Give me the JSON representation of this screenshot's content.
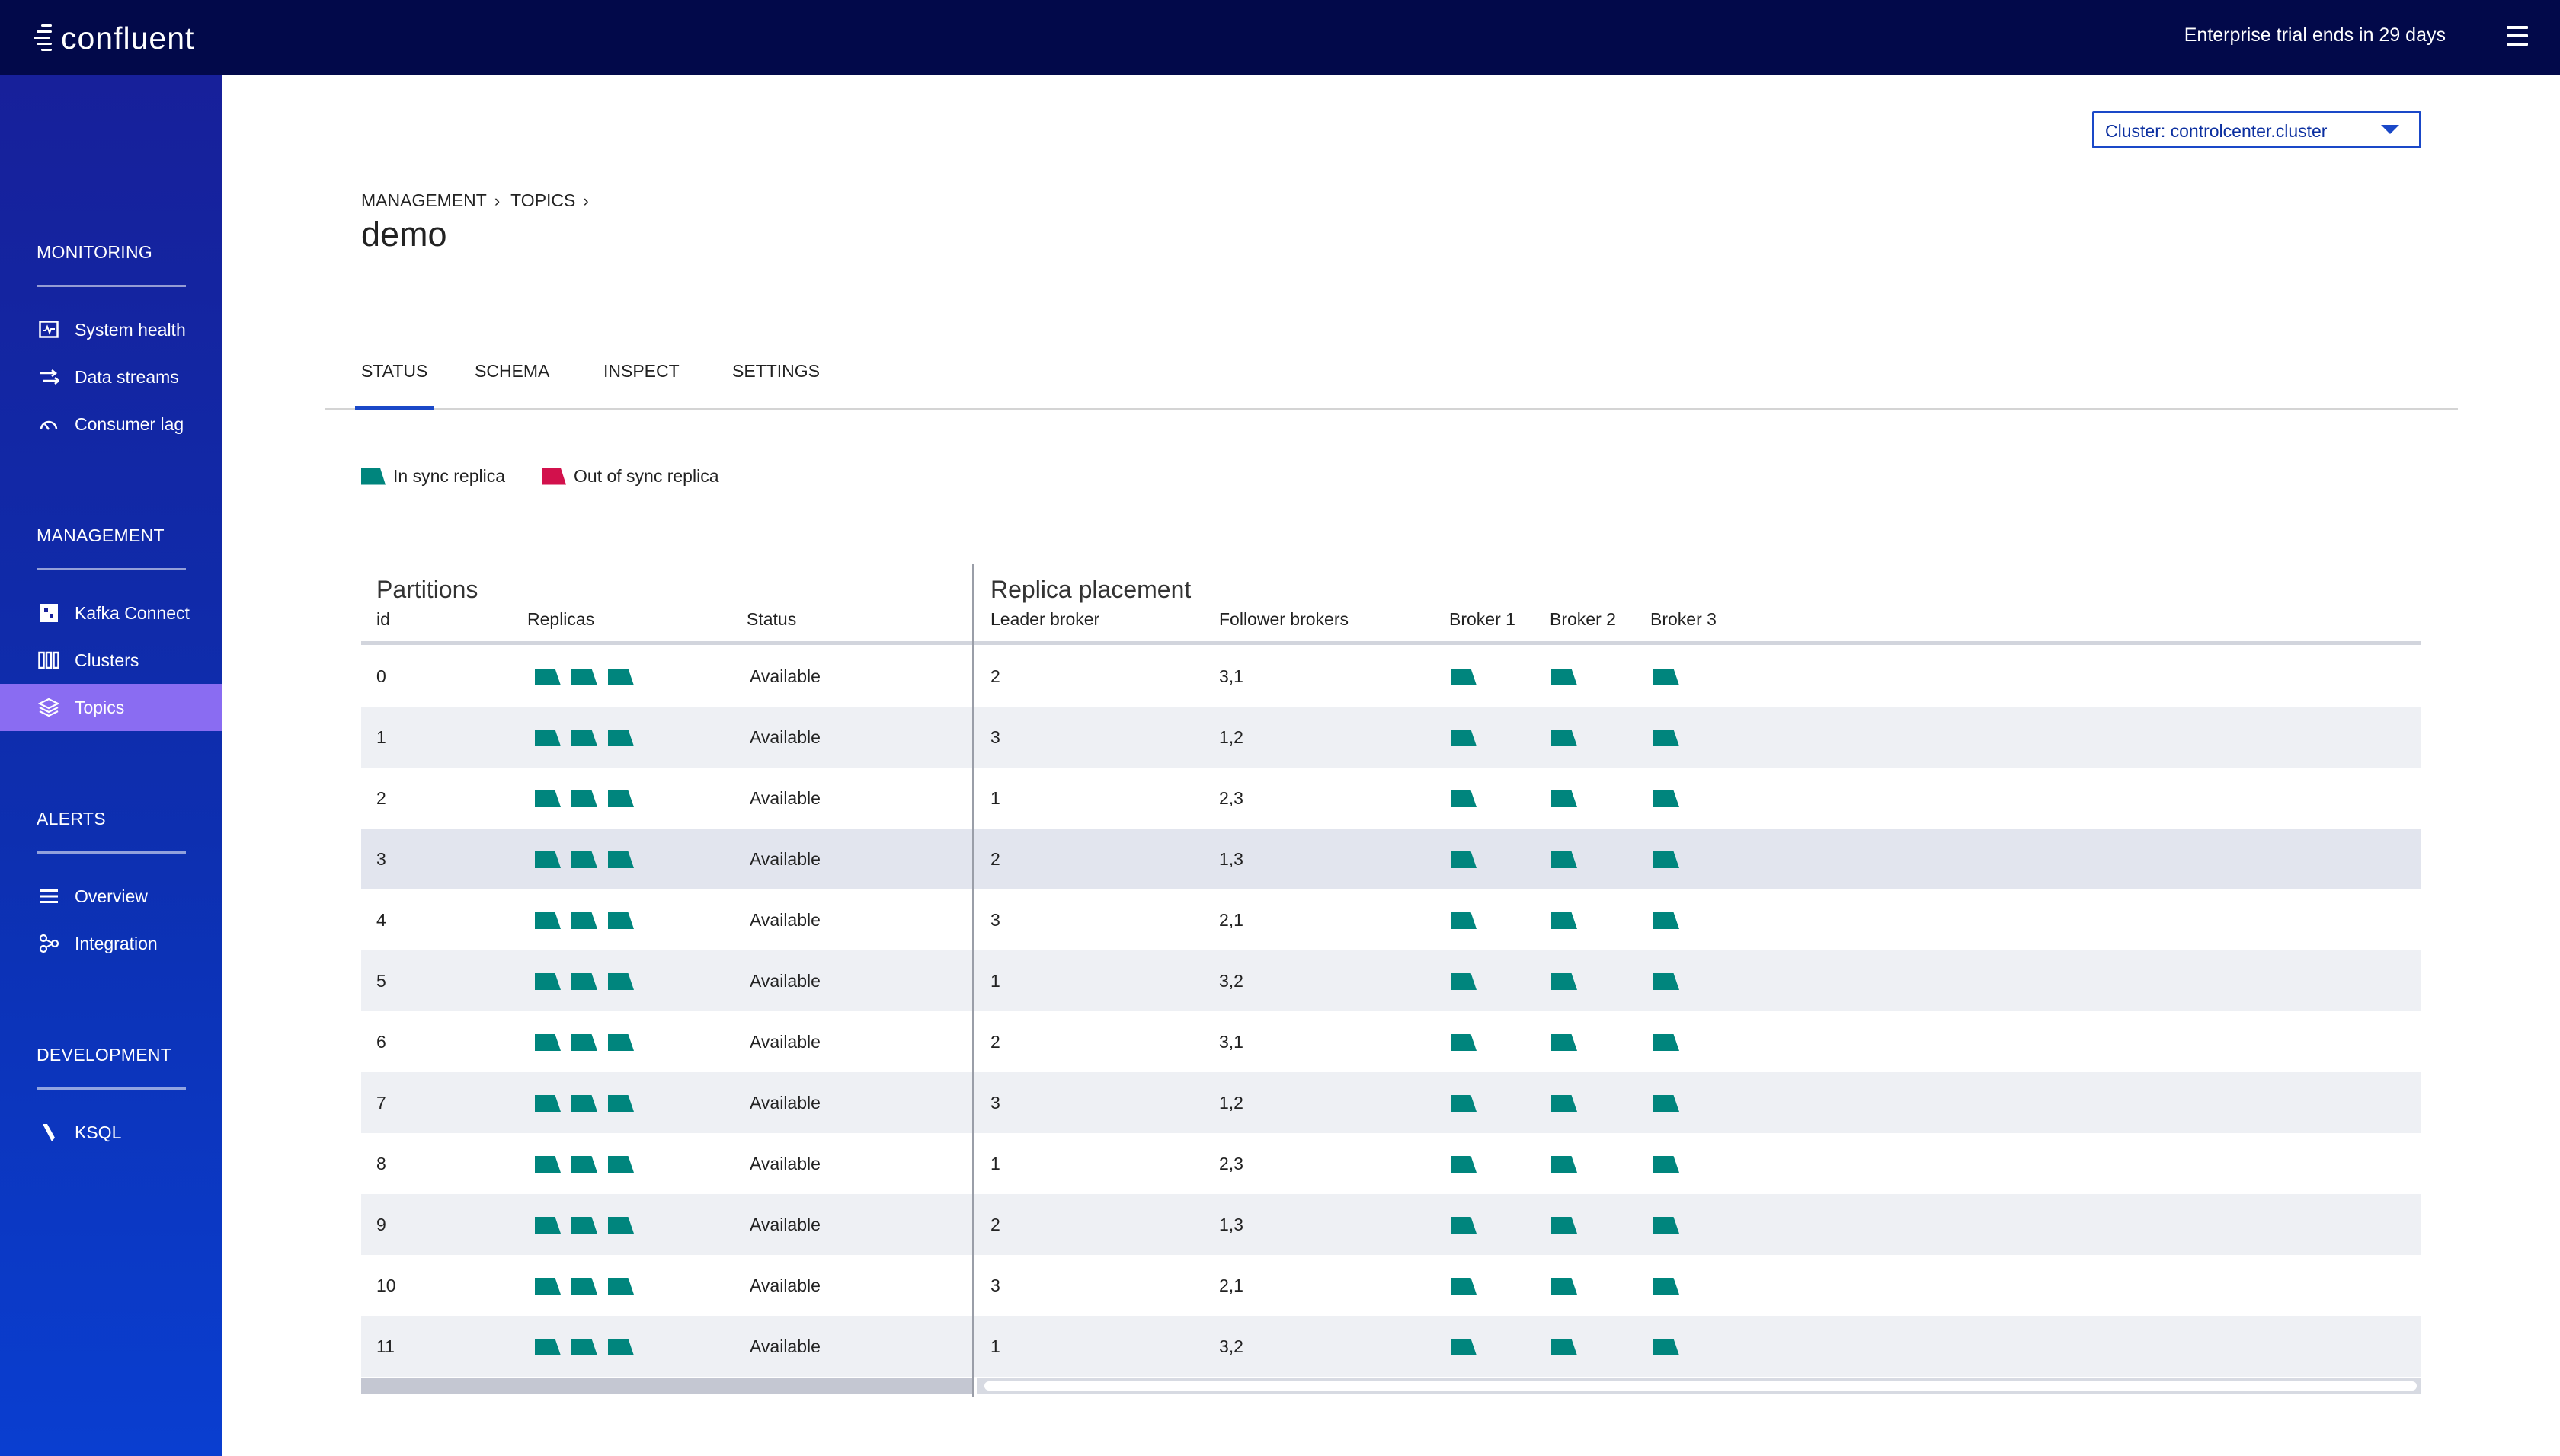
{
  "app": {
    "brand": "confluent",
    "trial_text": "Enterprise trial ends in 29 days",
    "menu_icon": "hamburger-icon"
  },
  "sidebar": {
    "sections": [
      {
        "title": "MONITORING",
        "items": [
          {
            "label": "System health",
            "icon": "system-health-icon"
          },
          {
            "label": "Data streams",
            "icon": "data-streams-icon"
          },
          {
            "label": "Consumer lag",
            "icon": "consumer-lag-icon"
          }
        ]
      },
      {
        "title": "MANAGEMENT",
        "items": [
          {
            "label": "Kafka Connect",
            "icon": "kafka-connect-icon"
          },
          {
            "label": "Clusters",
            "icon": "clusters-icon"
          },
          {
            "label": "Topics",
            "icon": "topics-icon",
            "active": true
          }
        ]
      },
      {
        "title": "ALERTS",
        "items": [
          {
            "label": "Overview",
            "icon": "overview-icon"
          },
          {
            "label": "Integration",
            "icon": "integration-icon"
          }
        ]
      },
      {
        "title": "DEVELOPMENT",
        "items": [
          {
            "label": "KSQL",
            "icon": "ksql-icon"
          }
        ]
      }
    ]
  },
  "cluster_select": {
    "value": "Cluster: controlcenter.cluster"
  },
  "breadcrumb": [
    "MANAGEMENT",
    "TOPICS"
  ],
  "page_title": "demo",
  "tabs": [
    {
      "label": "STATUS",
      "active": true
    },
    {
      "label": "SCHEMA"
    },
    {
      "label": "INSPECT"
    },
    {
      "label": "SETTINGS"
    }
  ],
  "legend": {
    "in_sync": {
      "label": "In sync replica",
      "color": "#00857d"
    },
    "out_of_sync": {
      "label": "Out of sync replica",
      "color": "#d2114c"
    }
  },
  "table": {
    "partitions_title": "Partitions",
    "placement_title": "Replica placement",
    "columns": {
      "id": "id",
      "replicas": "Replicas",
      "status": "Status",
      "leader": "Leader broker",
      "followers": "Follower brokers",
      "broker1": "Broker 1",
      "broker2": "Broker 2",
      "broker3": "Broker 3"
    },
    "rows": [
      {
        "id": "0",
        "status": "Available",
        "leader": "2",
        "followers": "3,1"
      },
      {
        "id": "1",
        "status": "Available",
        "leader": "3",
        "followers": "1,2"
      },
      {
        "id": "2",
        "status": "Available",
        "leader": "1",
        "followers": "2,3"
      },
      {
        "id": "3",
        "status": "Available",
        "leader": "2",
        "followers": "1,3"
      },
      {
        "id": "4",
        "status": "Available",
        "leader": "3",
        "followers": "2,1"
      },
      {
        "id": "5",
        "status": "Available",
        "leader": "1",
        "followers": "3,2"
      },
      {
        "id": "6",
        "status": "Available",
        "leader": "2",
        "followers": "3,1"
      },
      {
        "id": "7",
        "status": "Available",
        "leader": "3",
        "followers": "1,2"
      },
      {
        "id": "8",
        "status": "Available",
        "leader": "1",
        "followers": "2,3"
      },
      {
        "id": "9",
        "status": "Available",
        "leader": "2",
        "followers": "1,3"
      },
      {
        "id": "10",
        "status": "Available",
        "leader": "3",
        "followers": "2,1"
      },
      {
        "id": "11",
        "status": "Available",
        "leader": "1",
        "followers": "3,2"
      }
    ],
    "highlighted_row": 3
  }
}
